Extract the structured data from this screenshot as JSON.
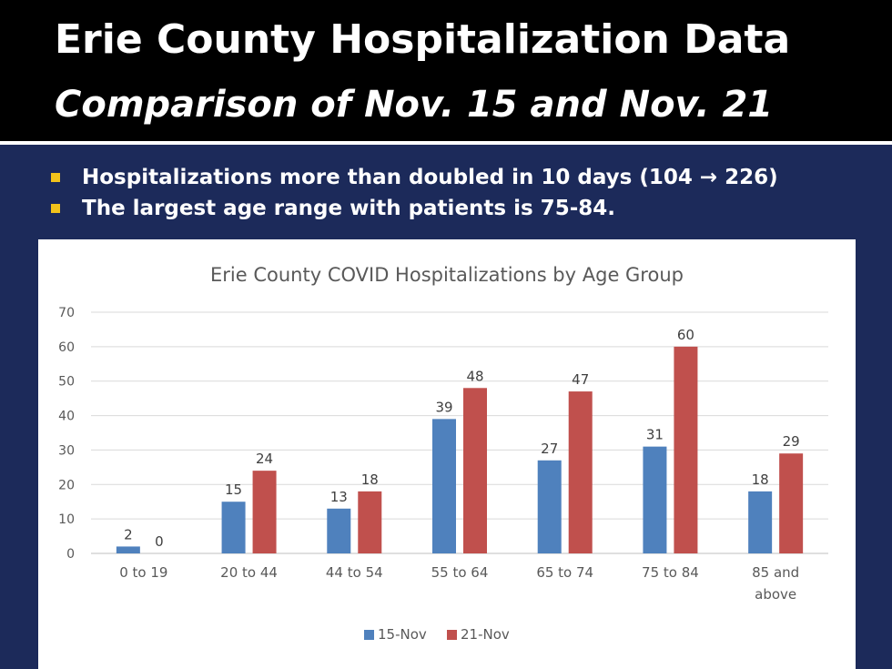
{
  "slide": {
    "title": "Erie County Hospitalization Data",
    "subtitle": "Comparison of Nov. 15 and Nov. 21",
    "bullets": [
      "Hospitalizations more than doubled in 10 days (104 → 226)",
      "The largest age range with patients is 75-84."
    ],
    "colors": {
      "background": "#1c2a5a",
      "header": "#000000",
      "bullet_marker": "#f2c31b"
    }
  },
  "chart_data": {
    "type": "bar",
    "title": "Erie County COVID Hospitalizations by Age Group",
    "categories": [
      "0 to 19",
      "20 to 44",
      "44 to 54",
      "55 to 64",
      "65 to 74",
      "75 to 84",
      "85 and above"
    ],
    "series": [
      {
        "name": "15-Nov",
        "color": "#4f81bd",
        "values": [
          2,
          15,
          13,
          39,
          27,
          31,
          18
        ]
      },
      {
        "name": "21-Nov",
        "color": "#c0504d",
        "values": [
          0,
          24,
          18,
          48,
          47,
          60,
          29
        ]
      }
    ],
    "yticks": [
      0,
      10,
      20,
      30,
      40,
      50,
      60,
      70
    ],
    "ylim": [
      0,
      70
    ],
    "grid": true,
    "legend": "bottom",
    "data_labels": true
  }
}
